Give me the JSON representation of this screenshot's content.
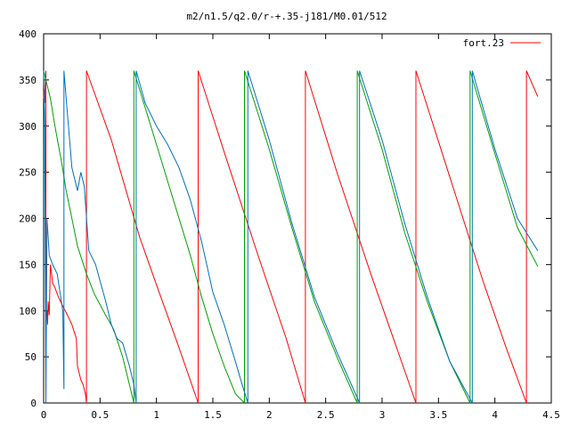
{
  "chart_data": {
    "type": "line",
    "title": "m2/n1.5/q2.0/r-+.35-j181/M0.01/512",
    "xlabel": "",
    "ylabel": "",
    "xlim": [
      0,
      4.5
    ],
    "ylim": [
      0,
      400
    ],
    "x_ticks": [
      0,
      0.5,
      1,
      1.5,
      2,
      2.5,
      3,
      3.5,
      4,
      4.5
    ],
    "x_tick_labels": [
      "0",
      "0.5",
      "1",
      "1.5",
      "2",
      "2.5",
      "3",
      "3.5",
      "4",
      "4.5"
    ],
    "y_ticks": [
      0,
      50,
      100,
      150,
      200,
      250,
      300,
      350,
      400
    ],
    "y_tick_labels": [
      "0",
      "50",
      "100",
      "150",
      "200",
      "250",
      "300",
      "350",
      "400"
    ],
    "grid": false,
    "legend_position": "top-right",
    "series": [
      {
        "name": "fort.23",
        "color": "#ff0000",
        "points": [
          [
            0,
            330
          ],
          [
            0.005,
            340
          ],
          [
            0.01,
            325
          ],
          [
            0.015,
            345
          ],
          [
            0.02,
            360
          ],
          [
            0.02,
            90
          ],
          [
            0.03,
            100
          ],
          [
            0.035,
            85
          ],
          [
            0.04,
            110
          ],
          [
            0.05,
            95
          ],
          [
            0.06,
            150
          ],
          [
            0.07,
            140
          ],
          [
            0.08,
            130
          ],
          [
            0.1,
            125
          ],
          [
            0.13,
            115
          ],
          [
            0.17,
            105
          ],
          [
            0.2,
            98
          ],
          [
            0.25,
            85
          ],
          [
            0.29,
            70
          ],
          [
            0.3,
            40
          ],
          [
            0.33,
            25
          ],
          [
            0.35,
            20
          ],
          [
            0.37,
            10
          ],
          [
            0.38,
            0
          ],
          [
            0.38,
            360
          ],
          [
            0.6,
            285
          ],
          [
            0.85,
            180
          ],
          [
            1.0,
            128
          ],
          [
            1.2,
            60
          ],
          [
            1.37,
            0
          ],
          [
            1.37,
            360
          ],
          [
            1.6,
            272
          ],
          [
            1.9,
            160
          ],
          [
            2.15,
            70
          ],
          [
            2.32,
            0
          ],
          [
            2.32,
            360
          ],
          [
            2.6,
            250
          ],
          [
            2.9,
            140
          ],
          [
            3.1,
            70
          ],
          [
            3.3,
            0
          ],
          [
            3.3,
            360
          ],
          [
            3.6,
            245
          ],
          [
            3.9,
            130
          ],
          [
            4.1,
            60
          ],
          [
            4.28,
            0
          ],
          [
            4.28,
            360
          ],
          [
            4.38,
            332
          ]
        ]
      },
      {
        "name": "",
        "color": "#00a000",
        "points": [
          [
            0,
            360
          ],
          [
            0.02,
            350
          ],
          [
            0.06,
            330
          ],
          [
            0.1,
            300
          ],
          [
            0.13,
            280
          ],
          [
            0.16,
            260
          ],
          [
            0.2,
            230
          ],
          [
            0.25,
            200
          ],
          [
            0.3,
            170
          ],
          [
            0.38,
            140
          ],
          [
            0.45,
            118
          ],
          [
            0.55,
            95
          ],
          [
            0.62,
            80
          ],
          [
            0.7,
            50
          ],
          [
            0.76,
            20
          ],
          [
            0.8,
            0
          ],
          [
            0.8,
            360
          ],
          [
            0.9,
            320
          ],
          [
            1.0,
            280
          ],
          [
            1.1,
            240
          ],
          [
            1.2,
            200
          ],
          [
            1.3,
            160
          ],
          [
            1.4,
            115
          ],
          [
            1.5,
            75
          ],
          [
            1.6,
            40
          ],
          [
            1.7,
            10
          ],
          [
            1.78,
            0
          ],
          [
            1.78,
            360
          ],
          [
            2.0,
            275
          ],
          [
            2.2,
            190
          ],
          [
            2.4,
            110
          ],
          [
            2.6,
            50
          ],
          [
            2.78,
            0
          ],
          [
            2.78,
            360
          ],
          [
            3.0,
            275
          ],
          [
            3.2,
            185
          ],
          [
            3.4,
            110
          ],
          [
            3.6,
            45
          ],
          [
            3.78,
            0
          ],
          [
            3.78,
            360
          ],
          [
            4.0,
            270
          ],
          [
            4.2,
            190
          ],
          [
            4.38,
            148
          ]
        ]
      },
      {
        "name": "",
        "color": "#0070c0",
        "points": [
          [
            0,
            360
          ],
          [
            0.01,
            300
          ],
          [
            0.02,
            0
          ],
          [
            0.03,
            200
          ],
          [
            0.05,
            160
          ],
          [
            0.08,
            150
          ],
          [
            0.12,
            140
          ],
          [
            0.17,
            100
          ],
          [
            0.18,
            15
          ],
          [
            0.18,
            360
          ],
          [
            0.2,
            330
          ],
          [
            0.25,
            255
          ],
          [
            0.3,
            230
          ],
          [
            0.33,
            250
          ],
          [
            0.36,
            235
          ],
          [
            0.4,
            165
          ],
          [
            0.46,
            150
          ],
          [
            0.55,
            110
          ],
          [
            0.6,
            85
          ],
          [
            0.65,
            70
          ],
          [
            0.7,
            65
          ],
          [
            0.76,
            40
          ],
          [
            0.8,
            20
          ],
          [
            0.82,
            0
          ],
          [
            0.82,
            360
          ],
          [
            0.9,
            325
          ],
          [
            1.0,
            300
          ],
          [
            1.05,
            290
          ],
          [
            1.1,
            280
          ],
          [
            1.2,
            255
          ],
          [
            1.3,
            220
          ],
          [
            1.4,
            175
          ],
          [
            1.5,
            120
          ],
          [
            1.6,
            85
          ],
          [
            1.7,
            45
          ],
          [
            1.76,
            20
          ],
          [
            1.81,
            0
          ],
          [
            1.81,
            360
          ],
          [
            2.0,
            285
          ],
          [
            2.2,
            195
          ],
          [
            2.4,
            115
          ],
          [
            2.6,
            55
          ],
          [
            2.8,
            0
          ],
          [
            2.8,
            360
          ],
          [
            3.0,
            285
          ],
          [
            3.2,
            195
          ],
          [
            3.4,
            115
          ],
          [
            3.6,
            45
          ],
          [
            3.8,
            0
          ],
          [
            3.8,
            360
          ],
          [
            4.0,
            275
          ],
          [
            4.2,
            200
          ],
          [
            4.38,
            165
          ]
        ]
      }
    ]
  }
}
